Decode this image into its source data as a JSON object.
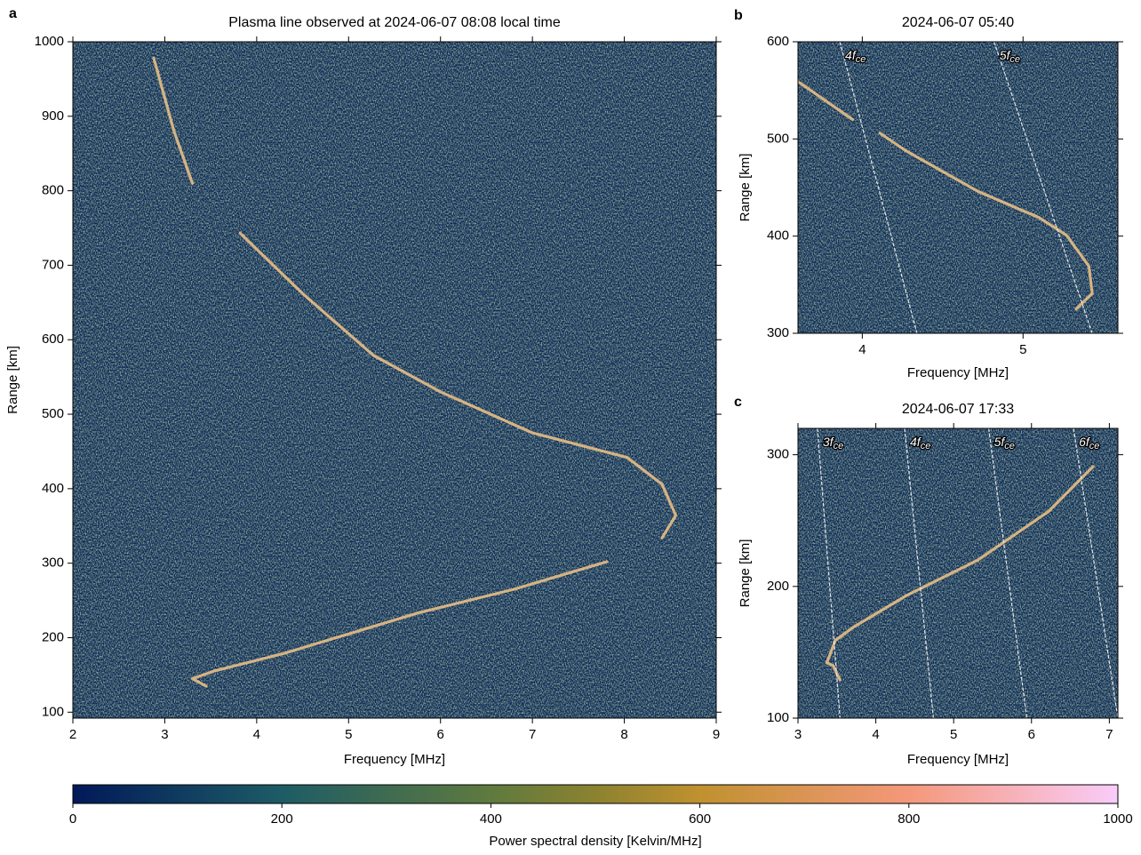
{
  "chart_data": [
    {
      "type": "heatmap",
      "panel": "a",
      "title": "Plasma line observed at 2024-06-07 08:08 local time",
      "xlabel": "Frequency [MHz]",
      "ylabel": "Range [km]",
      "xlim": [
        2,
        9
      ],
      "ylim": [
        92,
        1000
      ],
      "xticks": [
        2,
        3,
        4,
        5,
        6,
        7,
        8,
        9
      ],
      "yticks": [
        100,
        200,
        300,
        400,
        500,
        600,
        700,
        800,
        900,
        1000
      ],
      "traces": [
        {
          "x": [
            2.88,
            3.1,
            3.3,
            null,
            3.82,
            4.5,
            5.27,
            6.0,
            7.0,
            8.03,
            8.41,
            8.56,
            8.41,
            null,
            7.81,
            6.8,
            5.75,
            4.3,
            3.53,
            3.3,
            3.45
          ],
          "y": [
            978,
            880,
            810,
            null,
            743,
            662,
            579,
            530,
            475,
            442,
            406,
            364,
            334,
            null,
            302,
            265,
            233,
            179,
            155,
            145,
            135
          ]
        }
      ],
      "harmonics": []
    },
    {
      "type": "heatmap",
      "panel": "b",
      "title": "2024-06-07 05:40",
      "xlabel": "Frequency [MHz]",
      "ylabel": "Range [km]",
      "xlim": [
        3.6,
        5.59
      ],
      "ylim": [
        300,
        600
      ],
      "xticks": [
        4,
        5
      ],
      "yticks": [
        300,
        400,
        500,
        600
      ],
      "traces": [
        {
          "x": [
            3.6,
            3.94,
            null,
            4.11,
            4.27,
            4.72,
            5.1,
            5.27,
            5.41,
            5.43,
            5.33
          ],
          "y": [
            559,
            520,
            null,
            506,
            488,
            446,
            419,
            401,
            369,
            341,
            325
          ]
        }
      ],
      "harmonics": [
        {
          "label": "4f",
          "label_sub": "ce",
          "x": [
            3.86,
            4.34
          ],
          "y": [
            600,
            300
          ]
        },
        {
          "label": "5f",
          "label_sub": "ce",
          "x": [
            4.82,
            5.43
          ],
          "y": [
            600,
            300
          ]
        }
      ]
    },
    {
      "type": "heatmap",
      "panel": "c",
      "title": "2024-06-07 17:33",
      "xlabel": "Frequency [MHz]",
      "ylabel": "Range [km]",
      "xlim": [
        3,
        7.11
      ],
      "ylim": [
        100,
        320
      ],
      "xticks": [
        3,
        4,
        5,
        6,
        7
      ],
      "yticks": [
        100,
        200,
        300
      ],
      "traces": [
        {
          "x": [
            3.54,
            3.45,
            3.37,
            3.48,
            3.71,
            4.39,
            5.31,
            6.22,
            6.79
          ],
          "y": [
            129,
            140,
            142,
            159,
            169,
            193,
            220,
            257,
            291
          ]
        }
      ],
      "harmonics": [
        {
          "label": "3f",
          "label_sub": "ce",
          "x": [
            3.25,
            3.54
          ],
          "y": [
            320,
            100
          ]
        },
        {
          "label": "4f",
          "label_sub": "ce",
          "x": [
            4.37,
            4.74
          ],
          "y": [
            320,
            100
          ]
        },
        {
          "label": "5f",
          "label_sub": "ce",
          "x": [
            5.45,
            5.94
          ],
          "y": [
            320,
            100
          ]
        },
        {
          "label": "6f",
          "label_sub": "ce",
          "x": [
            6.54,
            7.11
          ],
          "y": [
            320,
            100
          ]
        }
      ]
    },
    {
      "type": "colorbar",
      "xlabel": "Power spectral density [Kelvin/MHz]",
      "xlim": [
        0,
        1000
      ],
      "xticks": [
        0,
        200,
        400,
        600,
        800,
        1000
      ],
      "colormap": [
        {
          "value": 0,
          "color": "#011959"
        },
        {
          "value": 200,
          "color": "#1d5c65"
        },
        {
          "value": 400,
          "color": "#5f7a3e"
        },
        {
          "value": 500,
          "color": "#8c8230"
        },
        {
          "value": 600,
          "color": "#c0912f"
        },
        {
          "value": 800,
          "color": "#f4987a"
        },
        {
          "value": 1000,
          "color": "#f9ccf9"
        }
      ]
    }
  ]
}
